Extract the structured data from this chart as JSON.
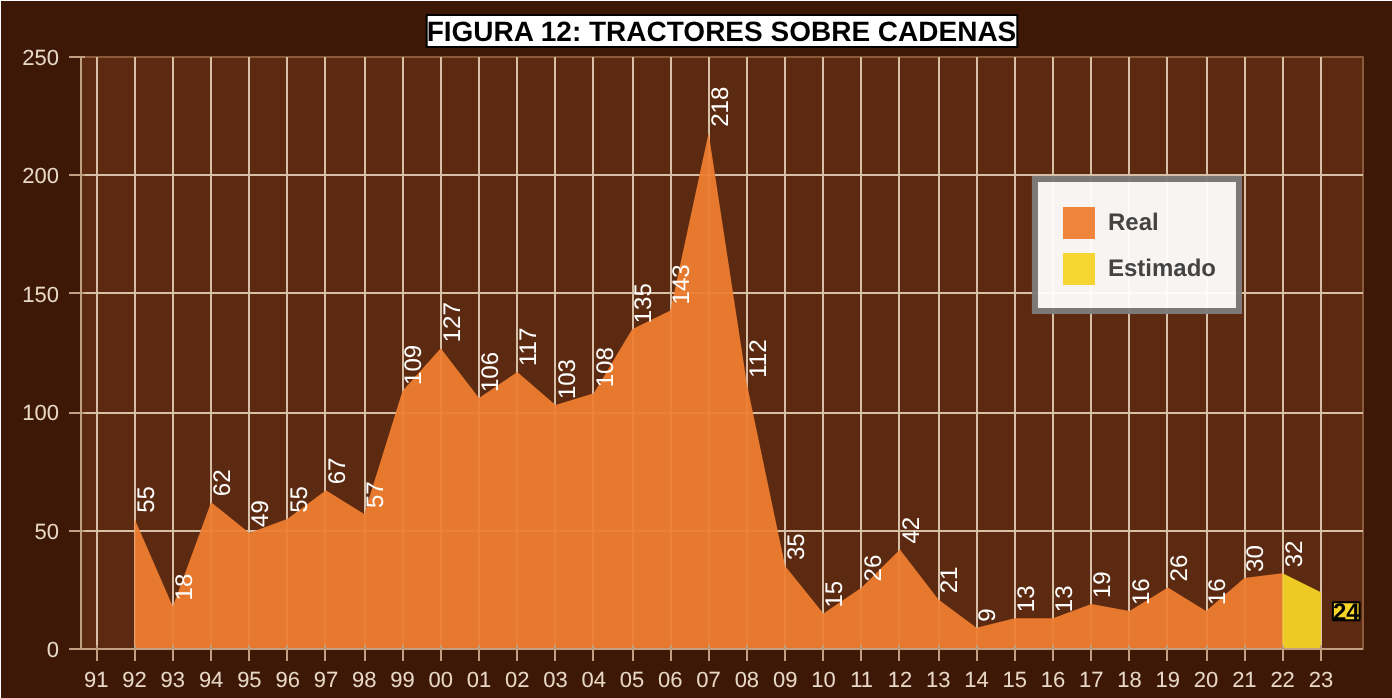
{
  "chart_data": {
    "type": "area",
    "title": "FIGURA 12: TRACTORES SOBRE CADENAS",
    "categories": [
      "91",
      "92",
      "93",
      "94",
      "95",
      "96",
      "97",
      "98",
      "99",
      "00",
      "01",
      "02",
      "03",
      "04",
      "05",
      "06",
      "07",
      "08",
      "09",
      "10",
      "11",
      "12",
      "13",
      "14",
      "15",
      "16",
      "17",
      "18",
      "19",
      "20",
      "21",
      "22",
      "23"
    ],
    "series": [
      {
        "name": "Real",
        "color": "#ee7d32",
        "values": [
          null,
          55,
          18,
          62,
          49,
          55,
          67,
          57,
          109,
          127,
          106,
          117,
          103,
          108,
          135,
          143,
          218,
          112,
          35,
          15,
          26,
          42,
          21,
          9,
          13,
          13,
          19,
          16,
          26,
          16,
          30,
          32,
          null
        ],
        "value_labels": [
          null,
          "55",
          "18",
          "62",
          "49",
          "55",
          "67",
          "57",
          "109",
          "127",
          "106",
          "117",
          "103",
          "108",
          "135",
          "143",
          "218",
          "112",
          "35",
          "15",
          "26",
          "42",
          "21",
          "9",
          "13",
          "13",
          "19",
          "16",
          "26",
          "16",
          "30",
          "32",
          null
        ]
      },
      {
        "name": "Estimado",
        "color": "#f5d327",
        "values": [
          null,
          null,
          null,
          null,
          null,
          null,
          null,
          null,
          null,
          null,
          null,
          null,
          null,
          null,
          null,
          null,
          null,
          null,
          null,
          null,
          null,
          null,
          null,
          null,
          null,
          null,
          null,
          null,
          null,
          null,
          null,
          32,
          24
        ],
        "value_labels": [
          null,
          null,
          null,
          null,
          null,
          null,
          null,
          null,
          null,
          null,
          null,
          null,
          null,
          null,
          null,
          null,
          null,
          null,
          null,
          null,
          null,
          null,
          null,
          null,
          null,
          null,
          null,
          null,
          null,
          null,
          null,
          null,
          "24"
        ]
      }
    ],
    "ylim": [
      0,
      250
    ],
    "yticks": [
      0,
      50,
      100,
      150,
      200,
      250
    ],
    "grid": true,
    "legend": "top right"
  }
}
